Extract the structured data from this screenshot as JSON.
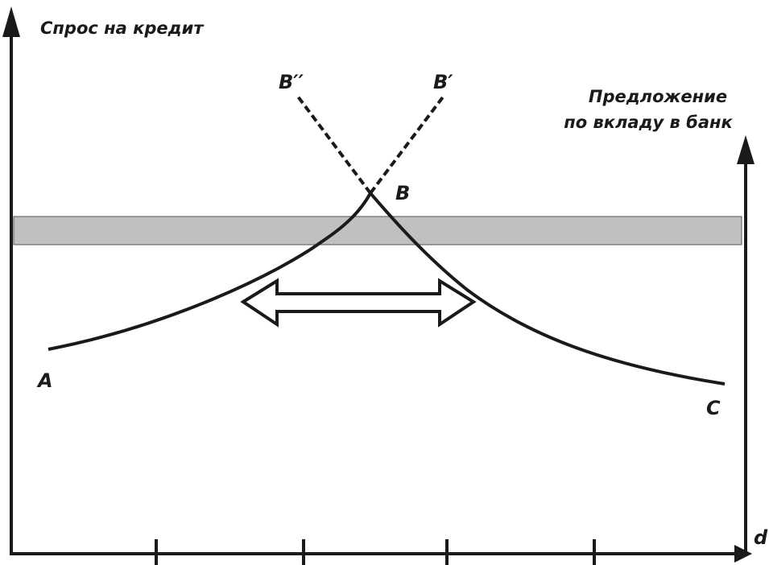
{
  "labels": {
    "y_axis_left": "Спрос на кредит",
    "y_axis_right_line1": "Предложение",
    "y_axis_right_line2": "по вкладу в банк",
    "x_axis": "d",
    "point_a": "A",
    "point_b": "B",
    "point_c": "C",
    "point_b_prime": "B′",
    "point_b_double_prime": "B′′"
  },
  "colors": {
    "line": "#1a1a1a",
    "band_fill": "#c0c0c2",
    "band_stroke": "#555555"
  }
}
